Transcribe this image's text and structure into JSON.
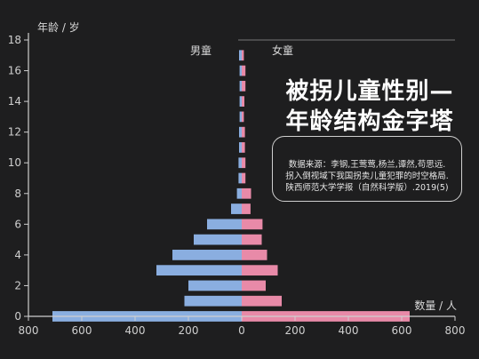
{
  "chart_data": {
    "type": "bar",
    "orientation": "horizontal",
    "subtype": "population-pyramid",
    "y_label": "年龄 / 岁",
    "x_label": "数量 / 人",
    "x_ticks": [
      "800",
      "600",
      "400",
      "200",
      "0",
      "200",
      "400",
      "600",
      "800"
    ],
    "y_ticks": [
      "0",
      "2",
      "4",
      "6",
      "8",
      "10",
      "12",
      "14",
      "16",
      "18"
    ],
    "xlim": [
      -800,
      800
    ],
    "ylim": [
      0,
      18
    ],
    "grid": false,
    "ages": [
      0,
      1,
      2,
      3,
      4,
      5,
      6,
      7,
      8,
      9,
      10,
      11,
      12,
      13,
      14,
      15,
      16,
      17
    ],
    "series": [
      {
        "name": "男童",
        "color": "#8aaee0",
        "values": [
          710,
          215,
          200,
          320,
          260,
          180,
          130,
          40,
          18,
          12,
          12,
          10,
          10,
          8,
          8,
          8,
          8,
          10
        ]
      },
      {
        "name": "女童",
        "color": "#e88aa8",
        "values": [
          630,
          150,
          90,
          135,
          95,
          75,
          78,
          33,
          35,
          14,
          14,
          12,
          12,
          8,
          10,
          14,
          14,
          8
        ]
      }
    ]
  },
  "title": {
    "line1": "被拐儿童性别—",
    "line2": "年龄结构金字塔"
  },
  "source": {
    "lines": [
      "数据来源：李钢,王莺莺,杨兰,谭然,苟思远.",
      "拐入倒视域下我国拐卖儿童犯罪的时空格局.",
      "陕西师范大学学报（自然科学版）.2019(5)"
    ]
  },
  "colors": {
    "background": "#1e1e1f",
    "axis": "#cfcfcf",
    "male": "#8aaee0",
    "female": "#e88aa8"
  }
}
